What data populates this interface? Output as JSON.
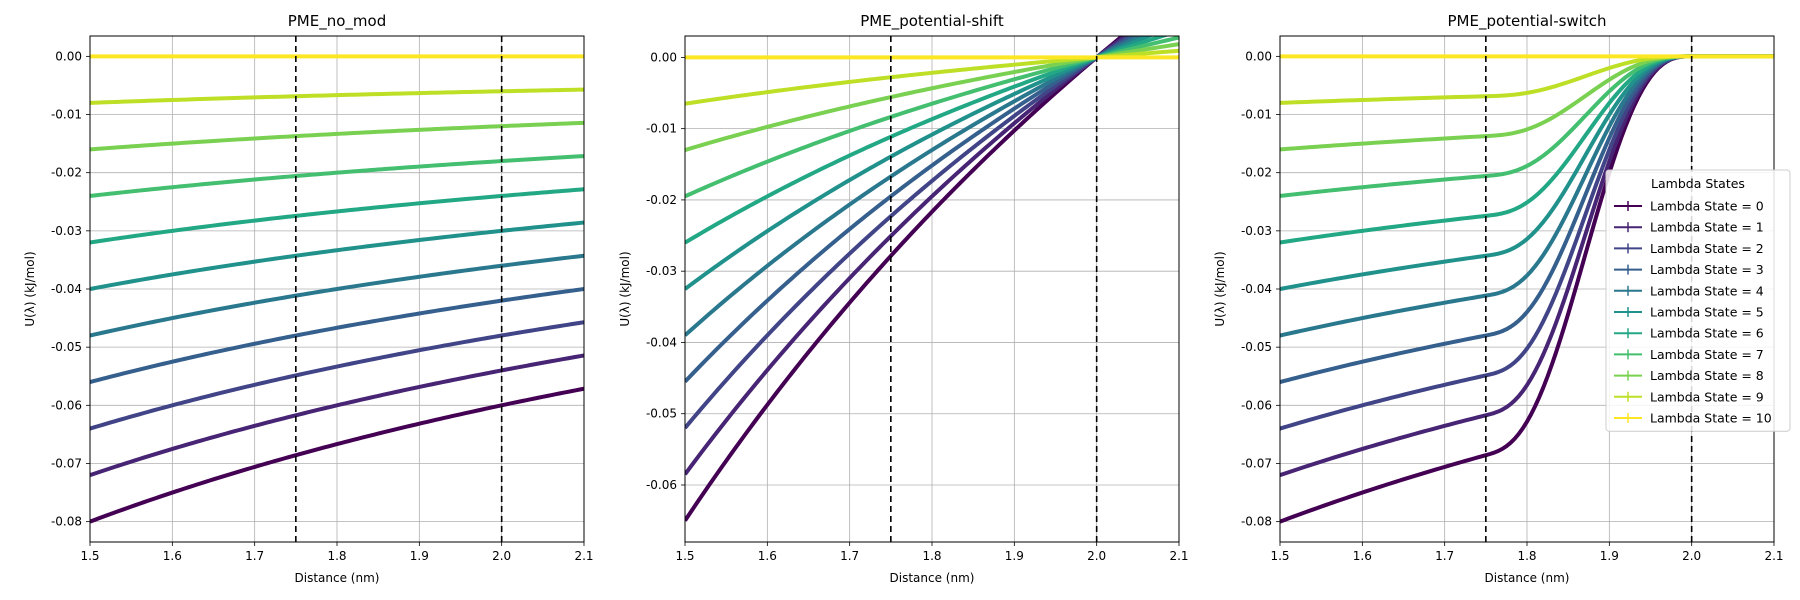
{
  "chart_data": [
    {
      "type": "line",
      "title": "PME_no_mod",
      "xlabel": "Distance (nm)",
      "ylabel": "U(λ) (kJ/mol)",
      "xlim": [
        1.5,
        2.1
      ],
      "ylim": [
        -0.0835,
        0.0035
      ],
      "xticks": [
        "1.5",
        "1.6",
        "1.7",
        "1.8",
        "1.9",
        "2.0",
        "2.1"
      ],
      "yticks": [
        "0.00",
        "-0.01",
        "-0.02",
        "-0.03",
        "-0.04",
        "-0.05",
        "-0.06",
        "-0.07",
        "-0.08"
      ],
      "grid": true,
      "vlines": [
        1.75,
        2.0
      ],
      "modifier": "none",
      "series": [
        {
          "name": "Lambda State = 0",
          "color": "#440154",
          "y_at_1_5": -0.08
        },
        {
          "name": "Lambda State = 1",
          "color": "#482475",
          "y_at_1_5": -0.072
        },
        {
          "name": "Lambda State = 2",
          "color": "#414487",
          "y_at_1_5": -0.064
        },
        {
          "name": "Lambda State = 3",
          "color": "#355f8d",
          "y_at_1_5": -0.056
        },
        {
          "name": "Lambda State = 4",
          "color": "#2a788e",
          "y_at_1_5": -0.048
        },
        {
          "name": "Lambda State = 5",
          "color": "#21918c",
          "y_at_1_5": -0.04
        },
        {
          "name": "Lambda State = 6",
          "color": "#22a884",
          "y_at_1_5": -0.032
        },
        {
          "name": "Lambda State = 7",
          "color": "#44bf70",
          "y_at_1_5": -0.024
        },
        {
          "name": "Lambda State = 8",
          "color": "#7ad151",
          "y_at_1_5": -0.016
        },
        {
          "name": "Lambda State = 9",
          "color": "#bddf26",
          "y_at_1_5": -0.008
        },
        {
          "name": "Lambda State = 10",
          "color": "#fde725",
          "y_at_1_5": 0.0
        }
      ]
    },
    {
      "type": "line",
      "title": "PME_potential-shift",
      "xlabel": "Distance (nm)",
      "ylabel": "U(λ) (kJ/mol)",
      "xlim": [
        1.5,
        2.1
      ],
      "ylim": [
        -0.068,
        0.003
      ],
      "xticks": [
        "1.5",
        "1.6",
        "1.7",
        "1.8",
        "1.9",
        "2.0",
        "2.1"
      ],
      "yticks": [
        "0.00",
        "-0.01",
        "-0.02",
        "-0.03",
        "-0.04",
        "-0.05",
        "-0.06"
      ],
      "grid": true,
      "vlines": [
        1.75,
        2.0
      ],
      "modifier": "potential-shift",
      "series": [
        {
          "name": "Lambda State = 0",
          "color": "#440154",
          "y_at_1_5": -0.065
        },
        {
          "name": "Lambda State = 1",
          "color": "#482475",
          "y_at_1_5": -0.0585
        },
        {
          "name": "Lambda State = 2",
          "color": "#414487",
          "y_at_1_5": -0.052
        },
        {
          "name": "Lambda State = 3",
          "color": "#355f8d",
          "y_at_1_5": -0.0455
        },
        {
          "name": "Lambda State = 4",
          "color": "#2a788e",
          "y_at_1_5": -0.039
        },
        {
          "name": "Lambda State = 5",
          "color": "#21918c",
          "y_at_1_5": -0.0325
        },
        {
          "name": "Lambda State = 6",
          "color": "#22a884",
          "y_at_1_5": -0.026
        },
        {
          "name": "Lambda State = 7",
          "color": "#44bf70",
          "y_at_1_5": -0.0195
        },
        {
          "name": "Lambda State = 8",
          "color": "#7ad151",
          "y_at_1_5": -0.013
        },
        {
          "name": "Lambda State = 9",
          "color": "#bddf26",
          "y_at_1_5": -0.0065
        },
        {
          "name": "Lambda State = 10",
          "color": "#fde725",
          "y_at_1_5": 0.0
        }
      ]
    },
    {
      "type": "line",
      "title": "PME_potential-switch",
      "xlabel": "Distance (nm)",
      "ylabel": "U(λ) (kJ/mol)",
      "xlim": [
        1.5,
        2.1
      ],
      "ylim": [
        -0.0835,
        0.0035
      ],
      "xticks": [
        "1.5",
        "1.6",
        "1.7",
        "1.8",
        "1.9",
        "2.0",
        "2.1"
      ],
      "yticks": [
        "0.00",
        "-0.01",
        "-0.02",
        "-0.03",
        "-0.04",
        "-0.05",
        "-0.06",
        "-0.07",
        "-0.08"
      ],
      "grid": true,
      "vlines": [
        1.75,
        2.0
      ],
      "modifier": "potential-switch",
      "legend": {
        "title": "Lambda States",
        "placement": "center-right"
      },
      "series": [
        {
          "name": "Lambda State = 0",
          "color": "#440154",
          "y_at_1_5": -0.08
        },
        {
          "name": "Lambda State = 1",
          "color": "#482475",
          "y_at_1_5": -0.072
        },
        {
          "name": "Lambda State = 2",
          "color": "#414487",
          "y_at_1_5": -0.064
        },
        {
          "name": "Lambda State = 3",
          "color": "#355f8d",
          "y_at_1_5": -0.056
        },
        {
          "name": "Lambda State = 4",
          "color": "#2a788e",
          "y_at_1_5": -0.048
        },
        {
          "name": "Lambda State = 5",
          "color": "#21918c",
          "y_at_1_5": -0.04
        },
        {
          "name": "Lambda State = 6",
          "color": "#22a884",
          "y_at_1_5": -0.032
        },
        {
          "name": "Lambda State = 7",
          "color": "#44bf70",
          "y_at_1_5": -0.024
        },
        {
          "name": "Lambda State = 8",
          "color": "#7ad151",
          "y_at_1_5": -0.016
        },
        {
          "name": "Lambda State = 9",
          "color": "#bddf26",
          "y_at_1_5": -0.008
        },
        {
          "name": "Lambda State = 10",
          "color": "#fde725",
          "y_at_1_5": 0.0
        }
      ]
    }
  ]
}
